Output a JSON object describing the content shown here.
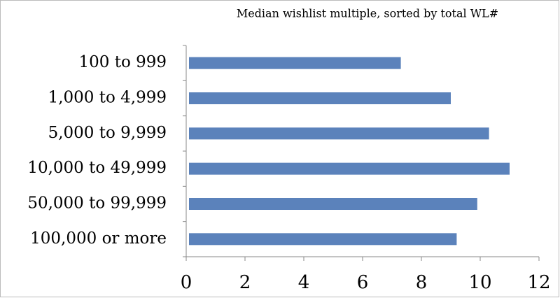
{
  "chart_data": {
    "type": "bar",
    "orientation": "horizontal",
    "title": "Median wishlist multiple, sorted by total WL#",
    "categories": [
      "100 to 999",
      "1,000 to 4,999",
      "5,000 to 9,999",
      "10,000 to 49,999",
      "50,000 to 99,999",
      "100,000 or more"
    ],
    "values": [
      7.3,
      9.0,
      10.3,
      11.0,
      9.9,
      9.2
    ],
    "color": "#5b82bb",
    "xlim": [
      0,
      12
    ],
    "xticks": [
      0,
      2,
      4,
      6,
      8,
      10,
      12
    ],
    "grid": false
  }
}
